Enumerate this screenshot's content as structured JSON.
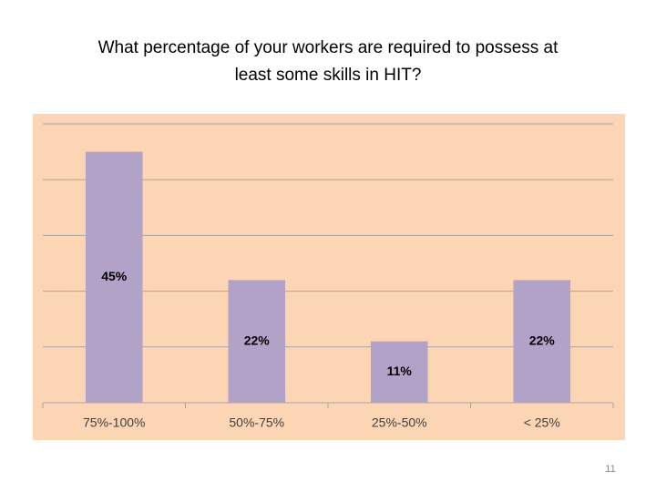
{
  "chart_data": {
    "type": "bar",
    "title": [
      "What percentage of your workers are required to possess at",
      "least some skills in HIT?"
    ],
    "categories": [
      "75%-100%",
      "50%-75%",
      "25%-50%",
      "< 25%"
    ],
    "values": [
      45,
      22,
      11,
      22
    ],
    "value_labels": [
      "45%",
      "22%",
      "11%",
      "22%"
    ],
    "color": "#b3a2c7",
    "background": "#fcd5b5",
    "ylim": [
      0,
      50
    ],
    "yticks": [
      0,
      10,
      20,
      30,
      40,
      50
    ],
    "grid": true
  },
  "page_number": "11"
}
